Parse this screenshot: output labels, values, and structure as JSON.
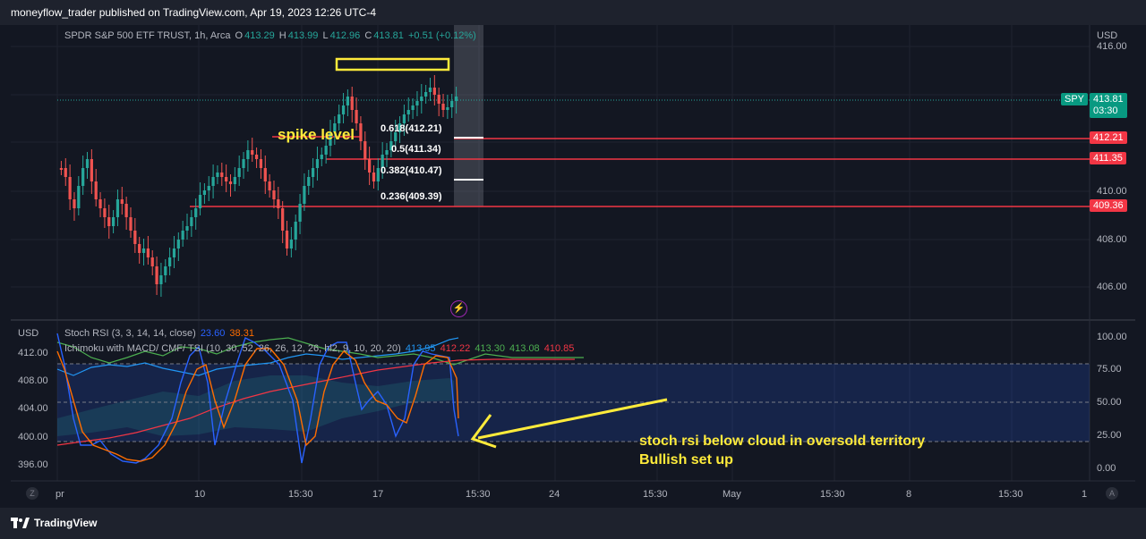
{
  "header": {
    "publish_info": "moneyflow_trader published on TradingView.com, Apr 19, 2023 12:26 UTC-4"
  },
  "main_pane": {
    "symbol": "SPDR S&P 500 ETF TRUST, 1h, Arca",
    "ohlc": {
      "o_label": "O",
      "o": "413.29",
      "h_label": "H",
      "h": "413.99",
      "l_label": "L",
      "l": "412.96",
      "c_label": "C",
      "c": "413.81",
      "change": "+0.51 (+0.12%)"
    },
    "currency": "USD",
    "price_axis": [
      "416.00",
      "410.00",
      "408.00",
      "406.00"
    ],
    "price_tags": {
      "spy_label": "SPY",
      "spy_price": "413.81",
      "spy_time": "03:30",
      "level1": "412.21",
      "level2": "411.35",
      "level3": "409.36"
    },
    "fib_labels": [
      "0.618(412.21)",
      "0.5(411.34)",
      "0.382(410.47)",
      "0.236(409.39)"
    ],
    "annotation": "spike level"
  },
  "lower_pane": {
    "currency": "USD",
    "stoch_legend": {
      "name": "Stoch RSI (3, 3, 14, 14, close)",
      "k": "23.60",
      "d": "38.31"
    },
    "ichimoku_legend": {
      "name": "Ichimoku with MACD/ CMF/ TSI (10, 30, 52, 26, 26, 12, 26, hl2, 9, 10, 20, 20)",
      "v1": "413.95",
      "v2": "412.22",
      "v3": "413.30",
      "v4": "413.08",
      "v5": "410.85"
    },
    "left_axis": [
      "412.00",
      "408.00",
      "404.00",
      "400.00",
      "396.00"
    ],
    "right_axis": [
      "100.00",
      "75.00",
      "50.00",
      "25.00",
      "0.00"
    ],
    "annotation_line1": "stoch rsi below cloud in oversold territory",
    "annotation_line2": "Bullish set up"
  },
  "time_axis": [
    "pr",
    "10",
    "15:30",
    "17",
    "15:30",
    "24",
    "15:30",
    "May",
    "15:30",
    "8",
    "15:30",
    "1"
  ],
  "buttons": {
    "z": "Z",
    "a": "A"
  },
  "footer": {
    "brand": "TradingView"
  },
  "colors": {
    "up": "#26a69a",
    "down": "#ef5350",
    "level": "#f23645",
    "highlight": "#ffeb3b",
    "background": "#131722"
  }
}
